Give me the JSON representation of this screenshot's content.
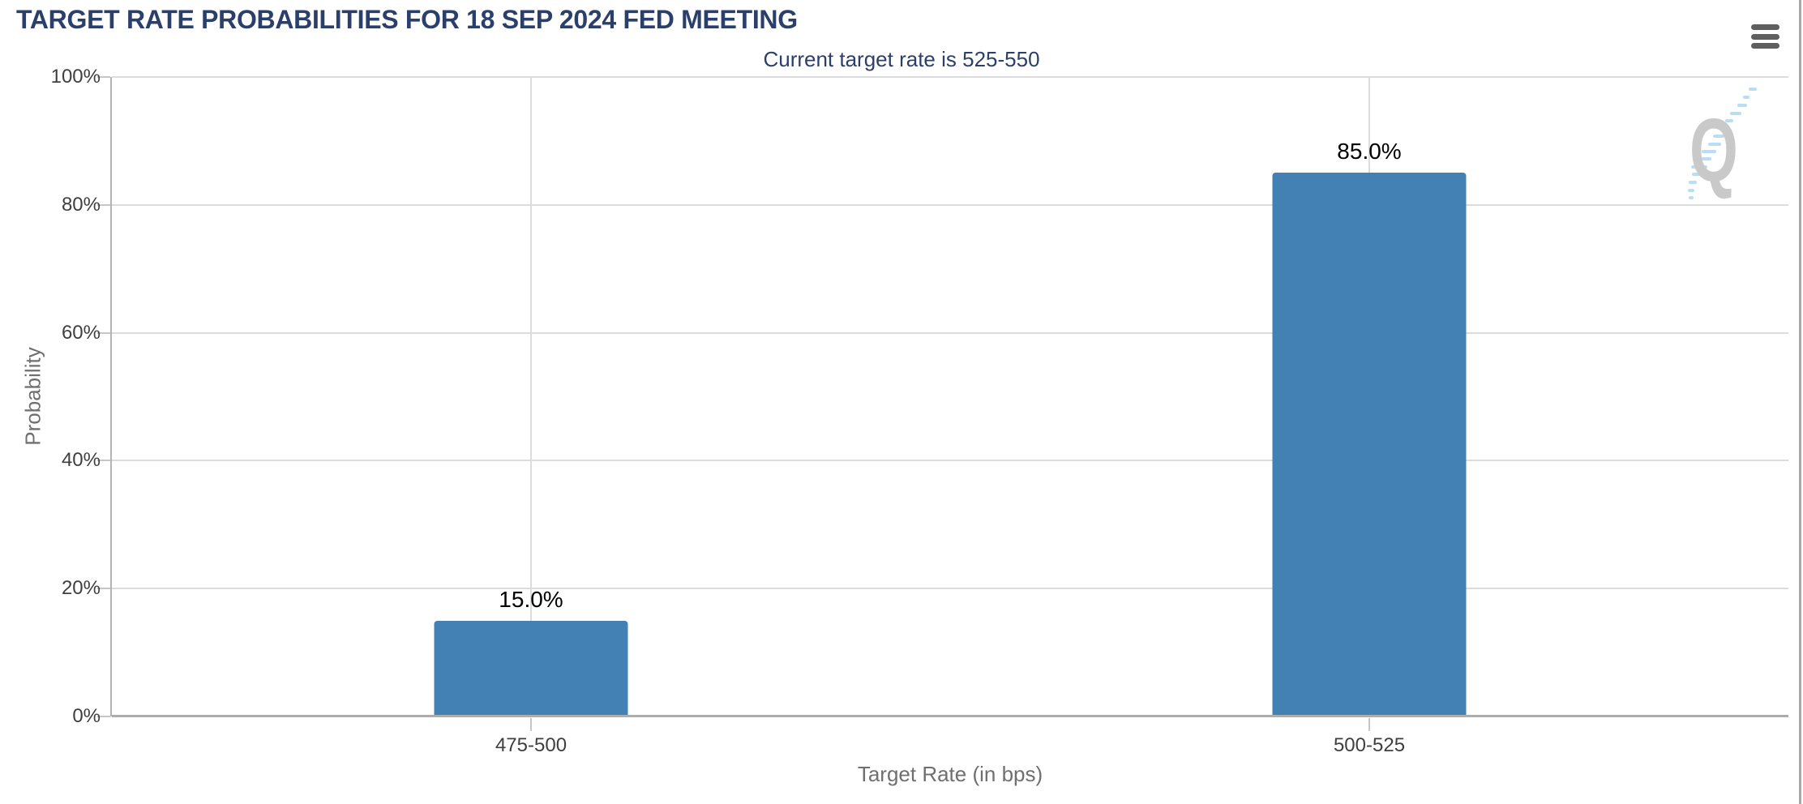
{
  "header": {
    "title": "TARGET RATE PROBABILITIES FOR 18 SEP 2024 FED MEETING"
  },
  "menu": {
    "icon": "hamburger-menu-icon"
  },
  "watermark": {
    "letter": "Q"
  },
  "colors": {
    "title": "#2b3f6b",
    "bar": "#4380b4",
    "grid": "#dcdcdc",
    "axis_line": "#b3b3b3",
    "baseline": "#adadad",
    "tick": "#c6c6c6",
    "tick_label": "#3f3f3f",
    "axis_title": "#6f6f6f",
    "bar_label": "#000000",
    "menu_icon": "#5f5f5f",
    "watermark_gray": "#c9c9c9",
    "watermark_blue": "#b9def3",
    "page_border": "#a8a8a8"
  },
  "chart_data": {
    "type": "bar",
    "title": "TARGET RATE PROBABILITIES FOR 18 SEP 2024 FED MEETING",
    "subtitle": "Current target rate is 525-550",
    "categories": [
      "475-500",
      "500-525"
    ],
    "values": [
      15.0,
      85.0
    ],
    "bar_labels": [
      "15.0%",
      "85.0%"
    ],
    "xlabel": "Target Rate (in bps)",
    "ylabel": "Probability",
    "ylim": [
      0,
      100
    ],
    "y_ticks": [
      0,
      20,
      40,
      60,
      80,
      100
    ],
    "y_tick_labels": [
      "0%",
      "20%",
      "40%",
      "60%",
      "80%",
      "100%"
    ],
    "grid": true,
    "legend": false
  }
}
